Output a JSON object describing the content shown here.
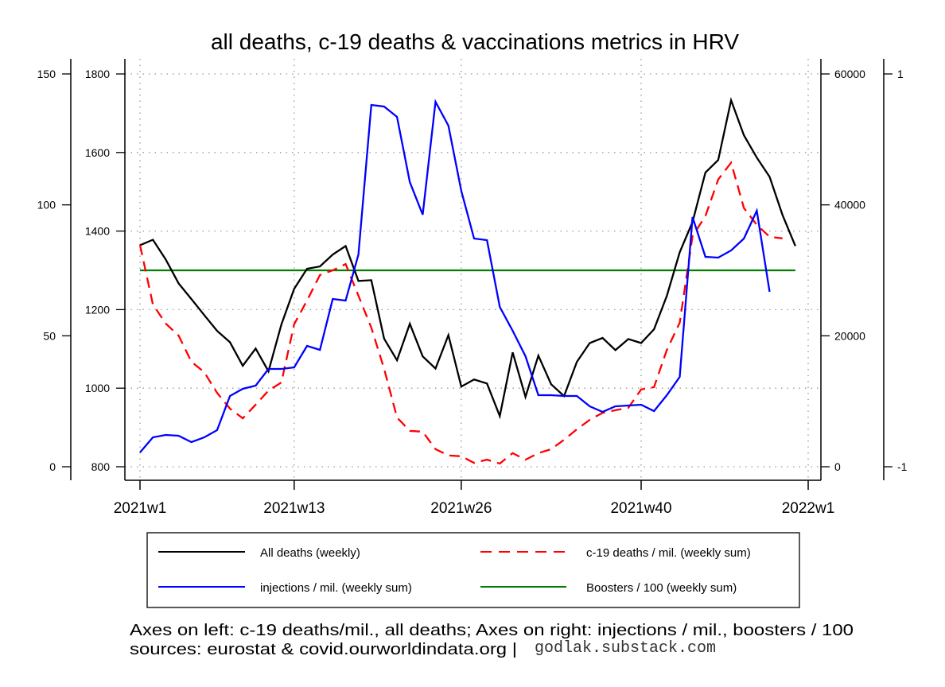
{
  "chart_data": {
    "type": "line",
    "title": "all deaths, c-19 deaths & vaccinations metrics in HRV",
    "x_tick_labels": [
      "2021w1",
      "2021w13",
      "2021w26",
      "2021w40",
      "2022w1"
    ],
    "x_tick_weeks": [
      1,
      13,
      26,
      40,
      53
    ],
    "axes": {
      "left_outer": {
        "label": "c-19 deaths / mil.",
        "range": [
          0,
          150
        ],
        "ticks": [
          0,
          50,
          100,
          150
        ]
      },
      "left_inner": {
        "label": "All deaths",
        "range": [
          800,
          1800
        ],
        "ticks": [
          800,
          1000,
          1200,
          1400,
          1600,
          1800
        ]
      },
      "right_inner": {
        "label": "injections / mil.",
        "range": [
          0,
          60000
        ],
        "ticks": [
          0,
          20000,
          40000,
          60000
        ]
      },
      "right_outer": {
        "label": "Boosters / 100",
        "range": [
          -1,
          1
        ],
        "ticks": [
          -1,
          1
        ]
      }
    },
    "grid": true,
    "weeks": [
      1,
      2,
      3,
      4,
      5,
      6,
      7,
      8,
      9,
      10,
      11,
      12,
      13,
      14,
      15,
      16,
      17,
      18,
      19,
      20,
      21,
      22,
      23,
      24,
      25,
      26,
      27,
      28,
      29,
      30,
      31,
      32,
      33,
      34,
      35,
      36,
      37,
      38,
      39,
      40,
      41,
      42,
      43,
      44,
      45,
      46,
      47,
      48,
      49,
      50,
      51,
      52
    ],
    "series": [
      {
        "name": "All deaths (weekly)",
        "axis": "left_inner",
        "color": "#000000",
        "dash": "solid",
        "values": [
          1364,
          1378,
          1328,
          1267,
          1227,
          1186,
          1146,
          1117,
          1057,
          1101,
          1043,
          1162,
          1253,
          1304,
          1310,
          1340,
          1362,
          1273,
          1275,
          1126,
          1071,
          1164,
          1081,
          1050,
          1135,
          1004,
          1022,
          1012,
          929,
          1091,
          978,
          1083,
          1010,
          980,
          1067,
          1115,
          1128,
          1097,
          1125,
          1115,
          1150,
          1235,
          1346,
          1423,
          1549,
          1581,
          1733,
          1644,
          1587,
          1538,
          1441,
          1362
        ]
      },
      {
        "name": "c-19 deaths / mil. (weekly sum)",
        "axis": "left_outer",
        "color": "#ff0000",
        "dash": "dashed",
        "values": [
          84.7,
          62.0,
          54.7,
          50.1,
          40.1,
          36.1,
          28.2,
          22.2,
          18.5,
          23.7,
          29.1,
          32.2,
          54.4,
          63.5,
          73.2,
          75.0,
          77.4,
          65.3,
          53.1,
          37.4,
          18.8,
          13.7,
          13.4,
          6.7,
          4.3,
          4.0,
          1.5,
          2.7,
          1.2,
          5.2,
          2.7,
          5.2,
          6.7,
          10.3,
          14.3,
          17.9,
          20.6,
          21.6,
          22.5,
          29.5,
          30.4,
          44.6,
          55.0,
          88.1,
          95.7,
          109.7,
          116.1,
          98.8,
          92.4,
          87.8,
          87.2
        ]
      },
      {
        "name": "injections / mil. (weekly sum)",
        "axis": "right_inner",
        "color": "#0000ff",
        "dash": "solid",
        "values": [
          2186,
          4494,
          4858,
          4737,
          3765,
          4494,
          5587,
          10810,
          11903,
          12389,
          14940,
          14940,
          15183,
          18462,
          17855,
          25628,
          25385,
          32430,
          55265,
          55022,
          53443,
          43484,
          38504,
          55751,
          52107,
          42148,
          34860,
          34617,
          24414,
          20771,
          16884,
          10931,
          10931,
          10810,
          10810,
          9231,
          8381,
          9231,
          9352,
          9474,
          8502,
          10931,
          13725,
          38140,
          32066,
          31945,
          33038,
          34860,
          39111,
          26721
        ]
      },
      {
        "name": "Boosters / 100 (weekly sum)",
        "axis": "right_outer",
        "color": "#007f00",
        "dash": "solid",
        "values": [
          0,
          0,
          0,
          0,
          0,
          0,
          0,
          0,
          0,
          0,
          0,
          0,
          0,
          0,
          0,
          0,
          0,
          0,
          0,
          0,
          0,
          0,
          0,
          0,
          0,
          0,
          0,
          0,
          0,
          0,
          0,
          0,
          0,
          0,
          0,
          0,
          0,
          0,
          0,
          0,
          0,
          0,
          0,
          0,
          0,
          0,
          0,
          0,
          0,
          0,
          0,
          0
        ]
      }
    ],
    "legend": {
      "placement": "bottom",
      "entries": [
        "All deaths (weekly)",
        "c-19 deaths / mil. (weekly sum)",
        "injections / mil. (weekly sum)",
        "Boosters / 100 (weekly sum)"
      ]
    },
    "notes": {
      "axes_note": "Axes on left: c-19 deaths/mil., all deaths; Axes on right: injections / mil., boosters / 100",
      "sources": "sources: eurostat & covid.ourworldindata.org |",
      "site": "godlak.substack.com"
    }
  }
}
